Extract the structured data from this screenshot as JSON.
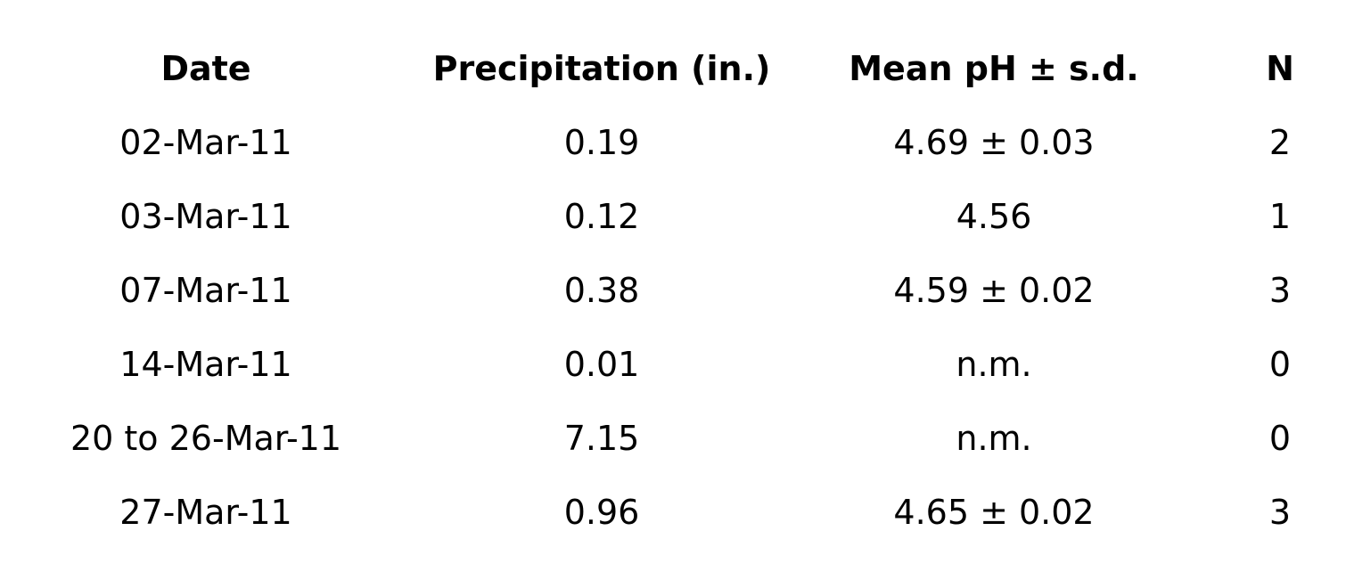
{
  "table": {
    "header": [
      "Date",
      "Precipitation (in.)",
      "Mean pH ± s.d.",
      "N"
    ],
    "rows": [
      [
        "02-Mar-11",
        "0.19",
        "4.69 ± 0.03",
        "2"
      ],
      [
        "03-Mar-11",
        "0.12",
        "4.56",
        "1"
      ],
      [
        "07-Mar-11",
        "0.38",
        "4.59 ± 0.02",
        "3"
      ],
      [
        "14-Mar-11",
        "0.01",
        "n.m.",
        "0"
      ],
      [
        "20 to 26-Mar-11",
        "7.15",
        "n.m.",
        "0"
      ],
      [
        "27-Mar-11",
        "0.96",
        "4.65 ± 0.02",
        "3"
      ]
    ]
  }
}
